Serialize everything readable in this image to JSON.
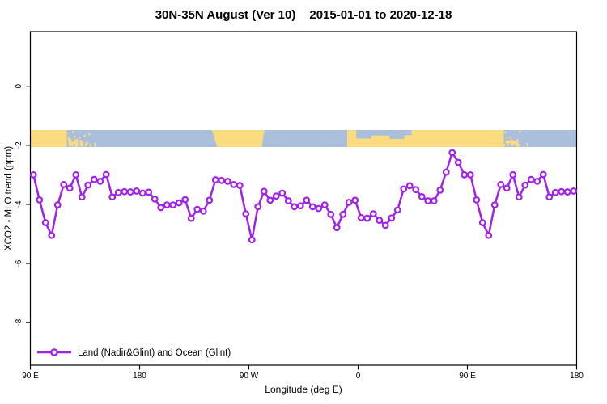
{
  "title": {
    "main": "30N-35N August (Ver 10)",
    "dates": "2015-01-01 to 2020-12-18"
  },
  "legend": {
    "label": "Land (Nadir&Glint) and Ocean (Glint)"
  },
  "colors": {
    "series": "#A020F0",
    "marker_fill": "#FFFFFF",
    "land": "#FBDB80",
    "ocean": "#A9BFDB",
    "axis": "#000000"
  },
  "chart_data": {
    "type": "line",
    "title": "30N-35N August (Ver 10)  2015-01-01 to 2020-12-18",
    "xlabel": "Longitude (deg E)",
    "ylabel": "XCO2 - MLO trend (ppm)",
    "xlim": [
      90,
      540
    ],
    "ylim": [
      -9.5,
      1.9
    ],
    "grid": false,
    "legend_position": "bottom-left-inside",
    "marker": "open-circle",
    "x_ticks": [
      {
        "pos": 90,
        "label": "90 E"
      },
      {
        "pos": 180,
        "label": "180"
      },
      {
        "pos": 270,
        "label": "90 W"
      },
      {
        "pos": 360,
        "label": "0"
      },
      {
        "pos": 450,
        "label": "90 E"
      },
      {
        "pos": 540,
        "label": "180"
      }
    ],
    "y_ticks": [
      {
        "pos": 0,
        "label": "0"
      },
      {
        "pos": -2,
        "label": "-2"
      },
      {
        "pos": -4,
        "label": "-4"
      },
      {
        "pos": -6,
        "label": "-6"
      },
      {
        "pos": -8,
        "label": "-8"
      }
    ],
    "x": [
      92.5,
      97.5,
      102.5,
      107.5,
      112.5,
      117.5,
      122.5,
      127.5,
      132.5,
      137.5,
      142.5,
      147.5,
      152.5,
      157.5,
      162.5,
      167.5,
      172.5,
      177.5,
      182.5,
      187.5,
      192.5,
      197.5,
      202.5,
      207.5,
      212.5,
      217.5,
      222.5,
      227.5,
      232.5,
      237.5,
      242.5,
      247.5,
      252.5,
      257.5,
      262.5,
      267.5,
      272.5,
      277.5,
      282.5,
      287.5,
      292.5,
      297.5,
      302.5,
      307.5,
      312.5,
      317.5,
      322.5,
      327.5,
      332.5,
      337.5,
      342.5,
      347.5,
      352.5,
      357.5,
      362.5,
      367.5,
      372.5,
      377.5,
      382.5,
      387.5,
      392.5,
      397.5,
      402.5,
      407.5,
      412.5,
      417.5,
      422.5,
      427.5,
      432.5,
      437.5,
      442.5,
      447.5,
      452.5,
      457.5,
      462.5,
      467.5,
      472.5,
      477.5,
      482.5,
      487.5,
      492.5,
      497.5,
      502.5,
      507.5,
      512.5,
      517.5,
      522.5,
      527.5,
      532.5,
      537.5
    ],
    "values": [
      -3.0,
      -3.85,
      -4.62,
      -5.05,
      -4.02,
      -3.33,
      -3.45,
      -3.0,
      -3.75,
      -3.35,
      -3.16,
      -3.22,
      -2.99,
      -3.75,
      -3.6,
      -3.57,
      -3.58,
      -3.55,
      -3.62,
      -3.59,
      -3.82,
      -4.11,
      -4.02,
      -4.02,
      -3.95,
      -3.84,
      -4.47,
      -4.17,
      -4.23,
      -3.86,
      -3.17,
      -3.19,
      -3.22,
      -3.33,
      -3.36,
      -4.32,
      -5.2,
      -4.08,
      -3.56,
      -3.86,
      -3.72,
      -3.62,
      -3.88,
      -4.08,
      -4.05,
      -3.86,
      -4.08,
      -4.14,
      -4.02,
      -4.34,
      -4.79,
      -4.34,
      -3.93,
      -3.86,
      -4.45,
      -4.47,
      -4.32,
      -4.54,
      -4.71,
      -4.46,
      -4.19,
      -3.48,
      -3.37,
      -3.5,
      -3.74,
      -3.88,
      -3.88,
      -3.52,
      -2.91,
      -2.25,
      -2.58,
      -3.0,
      -3.0,
      -3.85,
      -4.62,
      -5.05,
      -4.02,
      -3.33,
      -3.45,
      -3.0,
      -3.75,
      -3.35,
      -3.16,
      -3.22,
      -2.99,
      -3.75,
      -3.6,
      -3.57,
      -3.58,
      -3.55
    ],
    "map_band": {
      "description": "land/ocean strip for 30N-35N latitude band",
      "y_top": 161,
      "y_bottom": 182,
      "land_segments": [
        {
          "type": "rect",
          "from": 90,
          "to": 120
        },
        {
          "type": "rect",
          "from": 351,
          "to": 480
        }
      ],
      "land_polygon": {
        "top_from": 239.5,
        "top_to": 282.8,
        "bottom_from": 243.9,
        "bottom_to": 280.6
      },
      "island_zones": [
        {
          "from": 120,
          "to": 144
        },
        {
          "from": 480,
          "to": 502
        }
      ],
      "ocean_notches": [
        {
          "from": 358.5,
          "to": 371,
          "depth": 0.5
        },
        {
          "from": 371,
          "to": 386,
          "depth": 0.32
        },
        {
          "from": 386,
          "to": 398,
          "depth": 0.52
        },
        {
          "from": 398,
          "to": 404,
          "depth": 0.3
        }
      ]
    }
  }
}
